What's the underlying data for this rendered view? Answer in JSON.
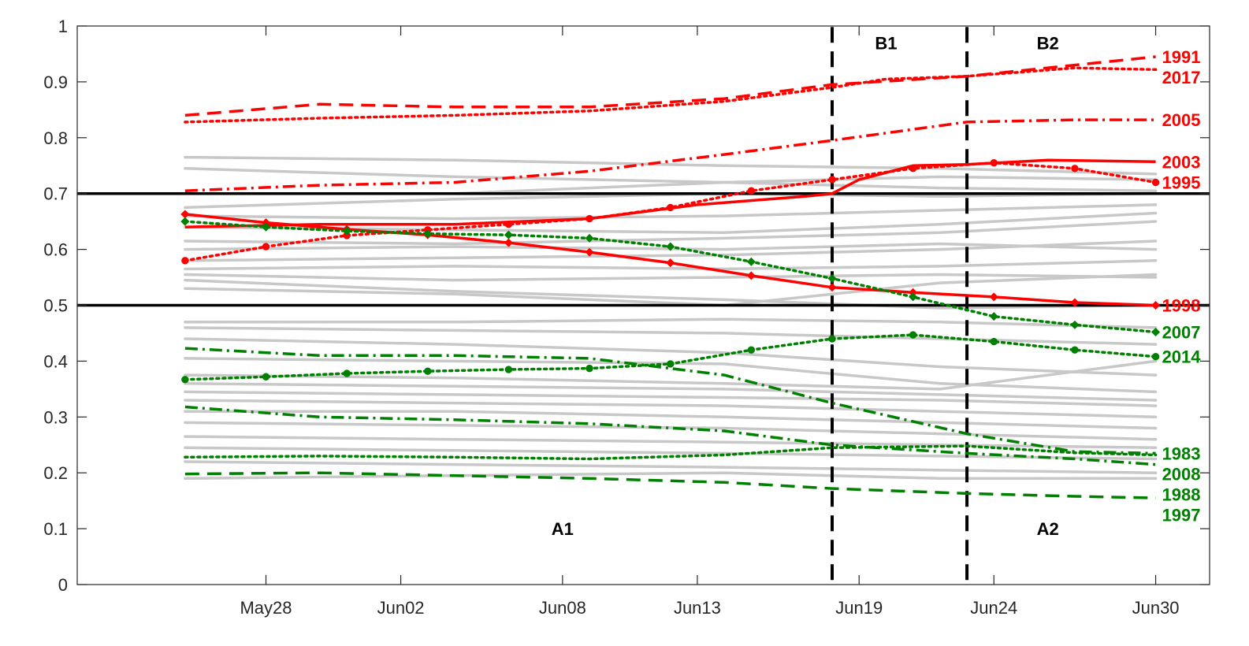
{
  "chart_data": {
    "type": "line",
    "x_type": "date",
    "xlim": [
      "2018-05-21",
      "2018-07-02"
    ],
    "ylim": [
      0,
      1
    ],
    "x_ticks": [
      {
        "date": "2018-05-28",
        "label": "May28"
      },
      {
        "date": "2018-06-02",
        "label": "Jun02"
      },
      {
        "date": "2018-06-08",
        "label": "Jun08"
      },
      {
        "date": "2018-06-13",
        "label": "Jun13"
      },
      {
        "date": "2018-06-19",
        "label": "Jun19"
      },
      {
        "date": "2018-06-24",
        "label": "Jun24"
      },
      {
        "date": "2018-06-30",
        "label": "Jun30"
      }
    ],
    "y_ticks": [
      0,
      0.1,
      0.2,
      0.3,
      0.4,
      0.5,
      0.6,
      0.7,
      0.8,
      0.9,
      1
    ],
    "y_tick_labels": [
      "0",
      "0.1",
      "0.2",
      "0.3",
      "0.4",
      "0.5",
      "0.6",
      "0.7",
      "0.8",
      "0.9",
      "1"
    ],
    "grid": false,
    "hlines": [
      0.5,
      0.7
    ],
    "vlines": [
      "2018-06-18",
      "2018-06-23"
    ],
    "region_labels": [
      {
        "text": "A1",
        "x": "2018-06-08",
        "y": 0.1
      },
      {
        "text": "A2",
        "x": "2018-06-26",
        "y": 0.1
      },
      {
        "text": "B1",
        "x": "2018-06-20",
        "y": 0.97
      },
      {
        "text": "B2",
        "x": "2018-06-26",
        "y": 0.97
      }
    ],
    "background_lines": [
      {
        "x": [
          "2018-05-25",
          "2018-06-04",
          "2018-06-14",
          "2018-06-22",
          "2018-06-30"
        ],
        "values": [
          0.765,
          0.76,
          0.75,
          0.745,
          0.735
        ]
      },
      {
        "x": [
          "2018-05-25",
          "2018-06-04",
          "2018-06-14",
          "2018-06-22",
          "2018-06-30"
        ],
        "values": [
          0.745,
          0.73,
          0.72,
          0.71,
          0.705
        ]
      },
      {
        "x": [
          "2018-05-25",
          "2018-06-04",
          "2018-06-14",
          "2018-06-22",
          "2018-06-30"
        ],
        "values": [
          0.7,
          0.7,
          0.72,
          0.73,
          0.725
        ]
      },
      {
        "x": [
          "2018-05-25",
          "2018-06-04",
          "2018-06-14",
          "2018-06-22",
          "2018-06-30"
        ],
        "values": [
          0.675,
          0.69,
          0.7,
          0.695,
          0.7
        ]
      },
      {
        "x": [
          "2018-05-25",
          "2018-06-04",
          "2018-06-14",
          "2018-06-22",
          "2018-06-30"
        ],
        "values": [
          0.66,
          0.655,
          0.66,
          0.67,
          0.68
        ]
      },
      {
        "x": [
          "2018-05-25",
          "2018-06-04",
          "2018-06-14",
          "2018-06-22",
          "2018-06-30"
        ],
        "values": [
          0.64,
          0.635,
          0.63,
          0.645,
          0.665
        ]
      },
      {
        "x": [
          "2018-05-25",
          "2018-06-04",
          "2018-06-14",
          "2018-06-22",
          "2018-06-30"
        ],
        "values": [
          0.615,
          0.61,
          0.62,
          0.63,
          0.65
        ]
      },
      {
        "x": [
          "2018-05-25",
          "2018-06-04",
          "2018-06-14",
          "2018-06-22",
          "2018-06-30"
        ],
        "values": [
          0.6,
          0.605,
          0.6,
          0.61,
          0.6
        ]
      },
      {
        "x": [
          "2018-05-25",
          "2018-06-04",
          "2018-06-14",
          "2018-06-22",
          "2018-06-30"
        ],
        "values": [
          0.58,
          0.585,
          0.59,
          0.6,
          0.615
        ]
      },
      {
        "x": [
          "2018-05-25",
          "2018-06-04",
          "2018-06-14",
          "2018-06-22",
          "2018-06-30"
        ],
        "values": [
          0.565,
          0.57,
          0.565,
          0.57,
          0.58
        ]
      },
      {
        "x": [
          "2018-05-25",
          "2018-06-04",
          "2018-06-14",
          "2018-06-22",
          "2018-06-30"
        ],
        "values": [
          0.555,
          0.545,
          0.55,
          0.555,
          0.55
        ]
      },
      {
        "x": [
          "2018-05-25",
          "2018-06-04",
          "2018-06-14",
          "2018-06-22",
          "2018-06-30"
        ],
        "values": [
          0.545,
          0.525,
          0.51,
          0.495,
          0.5
        ]
      },
      {
        "x": [
          "2018-05-25",
          "2018-06-04",
          "2018-06-14",
          "2018-06-22",
          "2018-06-30"
        ],
        "values": [
          0.53,
          0.52,
          0.5,
          0.54,
          0.555
        ]
      },
      {
        "x": [
          "2018-05-25",
          "2018-06-04",
          "2018-06-14",
          "2018-06-22",
          "2018-06-30"
        ],
        "values": [
          0.47,
          0.47,
          0.475,
          0.47,
          0.46
        ]
      },
      {
        "x": [
          "2018-05-25",
          "2018-06-04",
          "2018-06-14",
          "2018-06-22",
          "2018-06-30"
        ],
        "values": [
          0.46,
          0.455,
          0.45,
          0.44,
          0.43
        ]
      },
      {
        "x": [
          "2018-05-25",
          "2018-06-04",
          "2018-06-14",
          "2018-06-22",
          "2018-06-30"
        ],
        "values": [
          0.44,
          0.43,
          0.415,
          0.39,
          0.375
        ]
      },
      {
        "x": [
          "2018-05-25",
          "2018-06-04",
          "2018-06-14",
          "2018-06-22",
          "2018-06-30"
        ],
        "values": [
          0.405,
          0.4,
          0.395,
          0.36,
          0.345
        ]
      },
      {
        "x": [
          "2018-05-25",
          "2018-06-04",
          "2018-06-14",
          "2018-06-22",
          "2018-06-30"
        ],
        "values": [
          0.375,
          0.37,
          0.36,
          0.35,
          0.4
        ]
      },
      {
        "x": [
          "2018-05-25",
          "2018-06-04",
          "2018-06-14",
          "2018-06-22",
          "2018-06-30"
        ],
        "values": [
          0.36,
          0.355,
          0.35,
          0.34,
          0.33
        ]
      },
      {
        "x": [
          "2018-05-25",
          "2018-06-04",
          "2018-06-14",
          "2018-06-22",
          "2018-06-30"
        ],
        "values": [
          0.345,
          0.34,
          0.335,
          0.33,
          0.32
        ]
      },
      {
        "x": [
          "2018-05-25",
          "2018-06-04",
          "2018-06-14",
          "2018-06-22",
          "2018-06-30"
        ],
        "values": [
          0.33,
          0.325,
          0.32,
          0.31,
          0.3
        ]
      },
      {
        "x": [
          "2018-05-25",
          "2018-06-04",
          "2018-06-14",
          "2018-06-22",
          "2018-06-30"
        ],
        "values": [
          0.31,
          0.31,
          0.3,
          0.29,
          0.28
        ]
      },
      {
        "x": [
          "2018-05-25",
          "2018-06-04",
          "2018-06-14",
          "2018-06-22",
          "2018-06-30"
        ],
        "values": [
          0.29,
          0.285,
          0.28,
          0.27,
          0.26
        ]
      },
      {
        "x": [
          "2018-05-25",
          "2018-06-04",
          "2018-06-14",
          "2018-06-22",
          "2018-06-30"
        ],
        "values": [
          0.265,
          0.26,
          0.255,
          0.25,
          0.245
        ]
      },
      {
        "x": [
          "2018-05-25",
          "2018-06-04",
          "2018-06-14",
          "2018-06-22",
          "2018-06-30"
        ],
        "values": [
          0.245,
          0.24,
          0.235,
          0.23,
          0.225
        ]
      },
      {
        "x": [
          "2018-05-25",
          "2018-06-04",
          "2018-06-14",
          "2018-06-22",
          "2018-06-30"
        ],
        "values": [
          0.22,
          0.215,
          0.21,
          0.205,
          0.2
        ]
      },
      {
        "x": [
          "2018-05-25",
          "2018-06-04",
          "2018-06-14",
          "2018-06-22",
          "2018-06-30"
        ],
        "values": [
          0.19,
          0.195,
          0.2,
          0.19,
          0.19
        ]
      }
    ],
    "series": [
      {
        "name": "1991",
        "color": "#ff0000",
        "dash": "dashed",
        "marker": "none",
        "x": [
          "2018-05-25",
          "2018-05-30",
          "2018-06-04",
          "2018-06-09",
          "2018-06-14",
          "2018-06-18",
          "2018-06-23",
          "2018-06-27",
          "2018-06-30"
        ],
        "values": [
          0.84,
          0.86,
          0.855,
          0.855,
          0.87,
          0.895,
          0.91,
          0.93,
          0.945
        ]
      },
      {
        "name": "2017",
        "color": "#ff0000",
        "dash": "dotted",
        "marker": "none",
        "x": [
          "2018-05-25",
          "2018-05-30",
          "2018-06-04",
          "2018-06-09",
          "2018-06-14",
          "2018-06-18",
          "2018-06-20",
          "2018-06-23",
          "2018-06-27",
          "2018-06-30"
        ],
        "values": [
          0.828,
          0.835,
          0.84,
          0.848,
          0.865,
          0.89,
          0.905,
          0.91,
          0.925,
          0.922
        ]
      },
      {
        "name": "2005",
        "color": "#ff0000",
        "dash": "dashdot",
        "marker": "none",
        "x": [
          "2018-05-25",
          "2018-05-30",
          "2018-06-04",
          "2018-06-09",
          "2018-06-14",
          "2018-06-18",
          "2018-06-21",
          "2018-06-23",
          "2018-06-27",
          "2018-06-30"
        ],
        "values": [
          0.705,
          0.715,
          0.72,
          0.74,
          0.77,
          0.795,
          0.815,
          0.828,
          0.832,
          0.832
        ]
      },
      {
        "name": "2003",
        "color": "#ff0000",
        "dash": "solid",
        "marker": "none",
        "x": [
          "2018-05-25",
          "2018-05-30",
          "2018-06-04",
          "2018-06-09",
          "2018-06-13",
          "2018-06-17",
          "2018-06-18",
          "2018-06-19",
          "2018-06-21",
          "2018-06-23",
          "2018-06-26",
          "2018-06-30"
        ],
        "values": [
          0.64,
          0.645,
          0.645,
          0.655,
          0.68,
          0.695,
          0.7,
          0.725,
          0.75,
          0.752,
          0.76,
          0.757
        ]
      },
      {
        "name": "1995",
        "color": "#ff0000",
        "dash": "dotted",
        "marker": "x",
        "x": [
          "2018-05-25",
          "2018-05-28",
          "2018-05-31",
          "2018-06-03",
          "2018-06-06",
          "2018-06-09",
          "2018-06-12",
          "2018-06-15",
          "2018-06-18",
          "2018-06-21",
          "2018-06-24",
          "2018-06-27",
          "2018-06-30"
        ],
        "values": [
          0.58,
          0.605,
          0.625,
          0.635,
          0.645,
          0.655,
          0.675,
          0.705,
          0.725,
          0.745,
          0.755,
          0.745,
          0.72
        ]
      },
      {
        "name": "1998",
        "color": "#ff0000",
        "dash": "solid",
        "marker": "diamond",
        "x": [
          "2018-05-25",
          "2018-05-28",
          "2018-05-31",
          "2018-06-03",
          "2018-06-06",
          "2018-06-09",
          "2018-06-12",
          "2018-06-15",
          "2018-06-18",
          "2018-06-21",
          "2018-06-24",
          "2018-06-27",
          "2018-06-30"
        ],
        "values": [
          0.663,
          0.648,
          0.636,
          0.626,
          0.612,
          0.595,
          0.576,
          0.553,
          0.532,
          0.523,
          0.515,
          0.505,
          0.5
        ]
      },
      {
        "name": "2007",
        "color": "#008000",
        "dash": "dotted",
        "marker": "diamond",
        "x": [
          "2018-05-25",
          "2018-05-28",
          "2018-05-31",
          "2018-06-03",
          "2018-06-06",
          "2018-06-09",
          "2018-06-12",
          "2018-06-15",
          "2018-06-18",
          "2018-06-21",
          "2018-06-24",
          "2018-06-27",
          "2018-06-30"
        ],
        "values": [
          0.65,
          0.64,
          0.633,
          0.628,
          0.626,
          0.62,
          0.605,
          0.578,
          0.548,
          0.515,
          0.48,
          0.465,
          0.452
        ]
      },
      {
        "name": "2014",
        "color": "#008000",
        "dash": "dotted",
        "marker": "x",
        "x": [
          "2018-05-25",
          "2018-05-28",
          "2018-05-31",
          "2018-06-03",
          "2018-06-06",
          "2018-06-09",
          "2018-06-12",
          "2018-06-15",
          "2018-06-18",
          "2018-06-21",
          "2018-06-24",
          "2018-06-27",
          "2018-06-30"
        ],
        "values": [
          0.367,
          0.372,
          0.378,
          0.382,
          0.385,
          0.387,
          0.395,
          0.42,
          0.44,
          0.447,
          0.435,
          0.42,
          0.408
        ]
      },
      {
        "name": "1983",
        "color": "#008000",
        "dash": "dashdot",
        "marker": "none",
        "x": [
          "2018-05-25",
          "2018-05-30",
          "2018-06-04",
          "2018-06-09",
          "2018-06-14",
          "2018-06-18",
          "2018-06-23",
          "2018-06-27",
          "2018-06-30"
        ],
        "values": [
          0.423,
          0.41,
          0.41,
          0.405,
          0.375,
          0.325,
          0.27,
          0.238,
          0.235
        ]
      },
      {
        "name": "2008",
        "color": "#008000",
        "dash": "dotted",
        "marker": "none",
        "x": [
          "2018-05-25",
          "2018-05-30",
          "2018-06-04",
          "2018-06-09",
          "2018-06-14",
          "2018-06-18",
          "2018-06-23",
          "2018-06-27",
          "2018-06-30"
        ],
        "values": [
          0.228,
          0.23,
          0.228,
          0.225,
          0.232,
          0.245,
          0.248,
          0.236,
          0.232
        ]
      },
      {
        "name": "1988",
        "color": "#008000",
        "dash": "dashdot",
        "marker": "none",
        "x": [
          "2018-05-25",
          "2018-05-30",
          "2018-06-04",
          "2018-06-09",
          "2018-06-14",
          "2018-06-18",
          "2018-06-23",
          "2018-06-27",
          "2018-06-30"
        ],
        "values": [
          0.318,
          0.3,
          0.295,
          0.288,
          0.275,
          0.25,
          0.235,
          0.225,
          0.215
        ]
      },
      {
        "name": "1997",
        "color": "#008000",
        "dash": "dashed",
        "marker": "none",
        "x": [
          "2018-05-25",
          "2018-05-30",
          "2018-06-04",
          "2018-06-09",
          "2018-06-14",
          "2018-06-18",
          "2018-06-23",
          "2018-06-27",
          "2018-06-30"
        ],
        "values": [
          0.198,
          0.2,
          0.195,
          0.19,
          0.183,
          0.172,
          0.163,
          0.158,
          0.155
        ]
      }
    ],
    "series_labels": [
      {
        "text": "1991",
        "color": "#ff0000"
      },
      {
        "text": "2017",
        "color": "#ff0000"
      },
      {
        "text": "2005",
        "color": "#ff0000"
      },
      {
        "text": "2003",
        "color": "#ff0000"
      },
      {
        "text": "1995",
        "color": "#ff0000"
      },
      {
        "text": "1998",
        "color": "#ff0000"
      },
      {
        "text": "2007",
        "color": "#008000"
      },
      {
        "text": "2014",
        "color": "#008000"
      },
      {
        "text": "1983",
        "color": "#008000"
      },
      {
        "text": "2008",
        "color": "#008000"
      },
      {
        "text": "1988",
        "color": "#008000"
      },
      {
        "text": "1997",
        "color": "#008000"
      }
    ],
    "colors": {
      "red": "#ff0000",
      "green": "#008000",
      "background_line": "#c8c8c8",
      "axis": "#262626",
      "reference_line": "#000000"
    }
  }
}
